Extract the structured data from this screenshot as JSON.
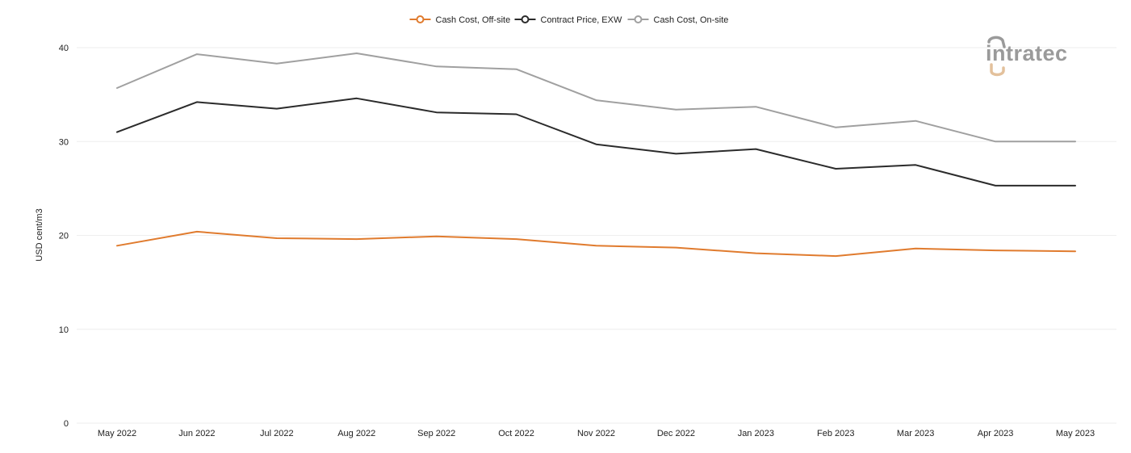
{
  "chart_data": {
    "type": "line",
    "title": "",
    "xlabel": "",
    "ylabel": "USD cent/m3",
    "ylim": [
      0,
      40
    ],
    "yticks": [
      0,
      10,
      20,
      30,
      40
    ],
    "grid": true,
    "legend_position": "top-center",
    "categories": [
      "May 2022",
      "Jun 2022",
      "Jul 2022",
      "Aug 2022",
      "Sep 2022",
      "Oct 2022",
      "Nov 2022",
      "Dec 2022",
      "Jan 2023",
      "Feb 2023",
      "Mar 2023",
      "Apr 2023",
      "May 2023"
    ],
    "series": [
      {
        "name": "Cash Cost, Off-site",
        "color": "#e07b2e",
        "values": [
          18.9,
          20.4,
          19.7,
          19.6,
          19.9,
          19.6,
          18.9,
          18.7,
          18.1,
          17.8,
          18.6,
          18.4,
          18.3
        ]
      },
      {
        "name": "Contract Price, EXW",
        "color": "#2b2b2b",
        "values": [
          31.0,
          34.2,
          33.5,
          34.6,
          33.1,
          32.9,
          29.7,
          28.7,
          29.2,
          27.1,
          27.5,
          25.3,
          25.3
        ]
      },
      {
        "name": "Cash Cost, On-site",
        "color": "#a0a0a0",
        "values": [
          35.7,
          39.3,
          38.3,
          39.4,
          38.0,
          37.7,
          34.4,
          33.4,
          33.7,
          31.5,
          32.2,
          30.0,
          30.0
        ]
      }
    ]
  },
  "brand": {
    "text": "intratec",
    "colors": {
      "primary": "#9a9a9a",
      "accent": "#e3c19c"
    }
  },
  "colors": {
    "grid": "#eeeeee",
    "text": "#222222"
  }
}
